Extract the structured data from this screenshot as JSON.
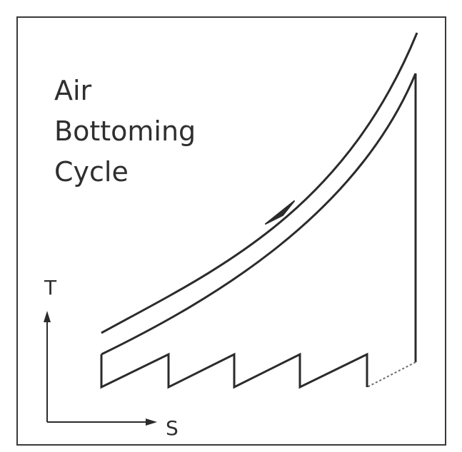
{
  "diagram": {
    "title_lines": [
      "Air",
      "Bottoming",
      "Cycle"
    ],
    "y_axis_label": "T",
    "x_axis_label": "S",
    "colors": {
      "line": "#2b2b2b",
      "frame": "#3a3a3a",
      "text": "#2f2f2f",
      "background": "#ffffff"
    }
  }
}
